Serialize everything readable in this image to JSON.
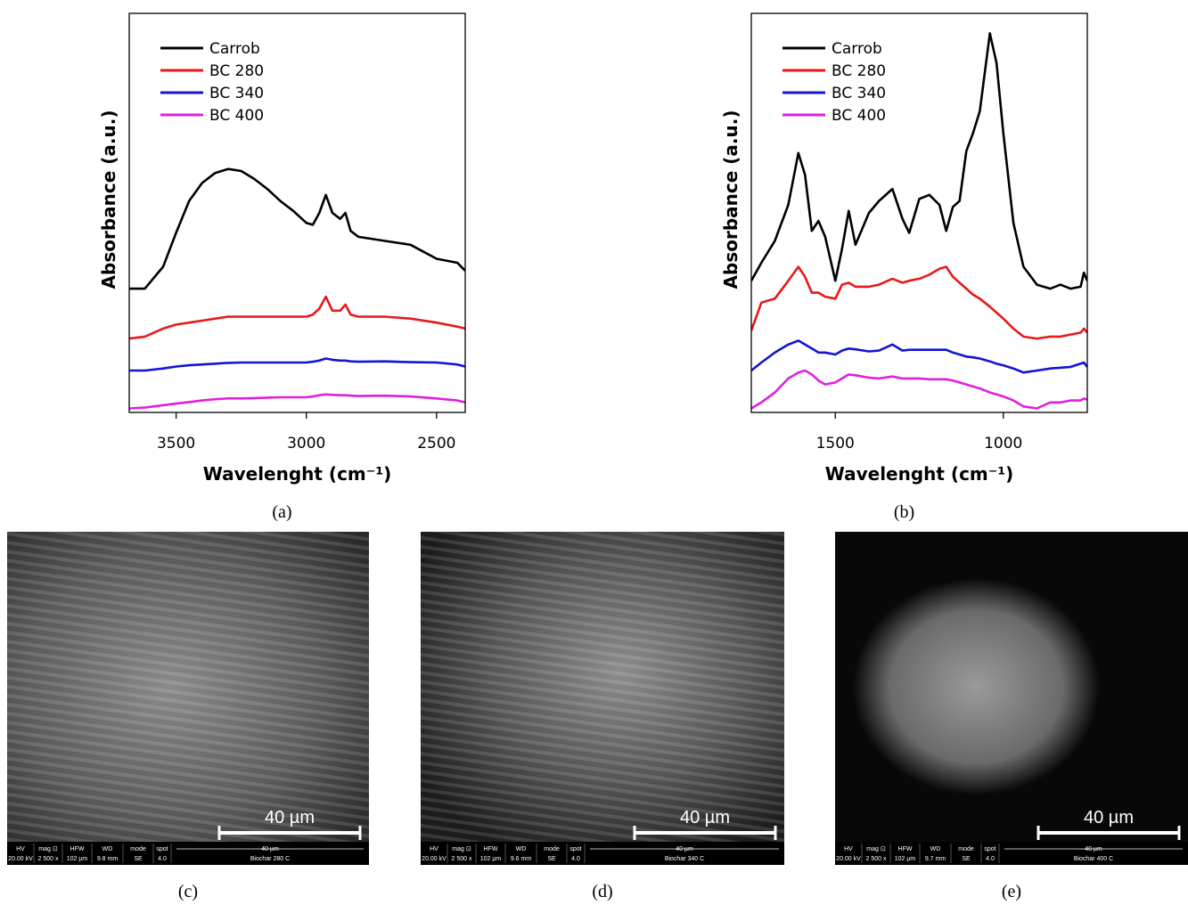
{
  "chart_data": [
    {
      "type": "line",
      "panel_label": "(a)",
      "xlabel": "Wavelenght (cm⁻¹)",
      "ylabel": "Absorbance (a.u.)",
      "xlim": [
        3680,
        2390
      ],
      "xticks": [
        3500,
        3000,
        2500
      ],
      "ylim": [
        0,
        1
      ],
      "legend": "upper left",
      "x": [
        3680,
        3620,
        3550,
        3500,
        3450,
        3400,
        3350,
        3300,
        3250,
        3200,
        3150,
        3100,
        3050,
        3000,
        2975,
        2950,
        2925,
        2900,
        2870,
        2850,
        2830,
        2800,
        2700,
        2600,
        2500,
        2420,
        2390
      ],
      "series": [
        {
          "name": "Carrob",
          "color": "#000000",
          "values": [
            0.31,
            0.31,
            0.365,
            0.45,
            0.53,
            0.575,
            0.6,
            0.61,
            0.605,
            0.585,
            0.56,
            0.53,
            0.505,
            0.475,
            0.47,
            0.5,
            0.545,
            0.5,
            0.485,
            0.5,
            0.455,
            0.44,
            0.43,
            0.42,
            0.385,
            0.375,
            0.355
          ]
        },
        {
          "name": "BC 280",
          "color": "#e8191a",
          "values": [
            0.185,
            0.19,
            0.21,
            0.22,
            0.225,
            0.23,
            0.235,
            0.24,
            0.24,
            0.24,
            0.24,
            0.24,
            0.24,
            0.24,
            0.245,
            0.26,
            0.29,
            0.255,
            0.255,
            0.27,
            0.245,
            0.24,
            0.24,
            0.235,
            0.225,
            0.215,
            0.21
          ]
        },
        {
          "name": "BC 340",
          "color": "#1414d4",
          "values": [
            0.105,
            0.105,
            0.11,
            0.115,
            0.118,
            0.12,
            0.122,
            0.124,
            0.125,
            0.125,
            0.125,
            0.125,
            0.125,
            0.125,
            0.127,
            0.13,
            0.135,
            0.132,
            0.13,
            0.13,
            0.128,
            0.127,
            0.128,
            0.126,
            0.125,
            0.12,
            0.115
          ]
        },
        {
          "name": "BC 400",
          "color": "#e020e0",
          "values": [
            0.01,
            0.012,
            0.018,
            0.022,
            0.026,
            0.03,
            0.033,
            0.035,
            0.035,
            0.036,
            0.037,
            0.038,
            0.038,
            0.038,
            0.04,
            0.043,
            0.045,
            0.044,
            0.043,
            0.043,
            0.042,
            0.041,
            0.042,
            0.04,
            0.035,
            0.03,
            0.025
          ]
        }
      ]
    },
    {
      "type": "line",
      "panel_label": "(b)",
      "xlabel": "Wavelenght (cm⁻¹)",
      "ylabel": "Absorbance (a.u.)",
      "xlim": [
        1750,
        750
      ],
      "xticks": [
        1500,
        1000
      ],
      "ylim": [
        0,
        1
      ],
      "legend": "upper left",
      "x": [
        1750,
        1720,
        1680,
        1640,
        1610,
        1590,
        1570,
        1550,
        1530,
        1500,
        1480,
        1460,
        1440,
        1400,
        1370,
        1330,
        1300,
        1280,
        1250,
        1220,
        1190,
        1170,
        1150,
        1130,
        1110,
        1090,
        1070,
        1040,
        1020,
        1000,
        970,
        940,
        900,
        860,
        830,
        800,
        770,
        760,
        750
      ],
      "series": [
        {
          "name": "Carrob",
          "color": "#000000",
          "values": [
            0.33,
            0.375,
            0.43,
            0.52,
            0.65,
            0.595,
            0.455,
            0.48,
            0.44,
            0.33,
            0.41,
            0.505,
            0.42,
            0.5,
            0.53,
            0.56,
            0.485,
            0.45,
            0.535,
            0.545,
            0.52,
            0.455,
            0.515,
            0.53,
            0.655,
            0.7,
            0.755,
            0.95,
            0.875,
            0.7,
            0.475,
            0.365,
            0.32,
            0.31,
            0.32,
            0.31,
            0.315,
            0.35,
            0.33
          ]
        },
        {
          "name": "BC 280",
          "color": "#e8191a",
          "values": [
            0.205,
            0.275,
            0.285,
            0.33,
            0.365,
            0.34,
            0.3,
            0.3,
            0.29,
            0.285,
            0.32,
            0.325,
            0.315,
            0.315,
            0.32,
            0.335,
            0.325,
            0.33,
            0.335,
            0.345,
            0.36,
            0.365,
            0.34,
            0.325,
            0.31,
            0.295,
            0.285,
            0.265,
            0.25,
            0.235,
            0.21,
            0.19,
            0.185,
            0.19,
            0.19,
            0.195,
            0.2,
            0.21,
            0.2
          ]
        },
        {
          "name": "BC 340",
          "color": "#1414d4",
          "values": [
            0.105,
            0.125,
            0.15,
            0.17,
            0.18,
            0.17,
            0.16,
            0.15,
            0.15,
            0.145,
            0.155,
            0.16,
            0.158,
            0.153,
            0.155,
            0.17,
            0.155,
            0.157,
            0.157,
            0.157,
            0.157,
            0.157,
            0.15,
            0.145,
            0.14,
            0.138,
            0.135,
            0.128,
            0.122,
            0.118,
            0.11,
            0.1,
            0.105,
            0.11,
            0.112,
            0.114,
            0.122,
            0.125,
            0.114
          ]
        },
        {
          "name": "BC 400",
          "color": "#e020e0",
          "values": [
            0.01,
            0.025,
            0.05,
            0.085,
            0.1,
            0.105,
            0.095,
            0.08,
            0.07,
            0.075,
            0.085,
            0.095,
            0.093,
            0.087,
            0.085,
            0.09,
            0.085,
            0.085,
            0.085,
            0.083,
            0.083,
            0.083,
            0.08,
            0.075,
            0.07,
            0.065,
            0.06,
            0.05,
            0.045,
            0.04,
            0.03,
            0.015,
            0.01,
            0.025,
            0.025,
            0.03,
            0.03,
            0.035,
            0.032
          ]
        }
      ]
    }
  ],
  "sem_images": [
    {
      "panel_label": "(c)",
      "scale_bar": "40 µm",
      "info_headers": [
        "HV",
        "mag ⊡",
        "HFW",
        "WD",
        "mode",
        "spot"
      ],
      "info_values": [
        "20.00 kV",
        "2 500 x",
        "102 µm",
        "9.8 mm",
        "SE",
        "4.0"
      ],
      "info_scale": "40 µm",
      "sample": "Biochar 280 C"
    },
    {
      "panel_label": "(d)",
      "scale_bar": "40 µm",
      "info_headers": [
        "HV",
        "mag ⊡",
        "HFW",
        "WD",
        "mode",
        "spot"
      ],
      "info_values": [
        "20.00 kV",
        "2 500 x",
        "102 µm",
        "9.6 mm",
        "SE",
        "4.0"
      ],
      "info_scale": "40 µm",
      "sample": "Biochar 340 C"
    },
    {
      "panel_label": "(e)",
      "scale_bar": "40 µm",
      "info_headers": [
        "HV",
        "mag ⊡",
        "HFW",
        "WD",
        "mode",
        "spot"
      ],
      "info_values": [
        "20.00 kV",
        "2 500 x",
        "102 µm",
        "9.7 mm",
        "SE",
        "4.0"
      ],
      "info_scale": "40 µm",
      "sample": "Biochar 400 C"
    }
  ]
}
